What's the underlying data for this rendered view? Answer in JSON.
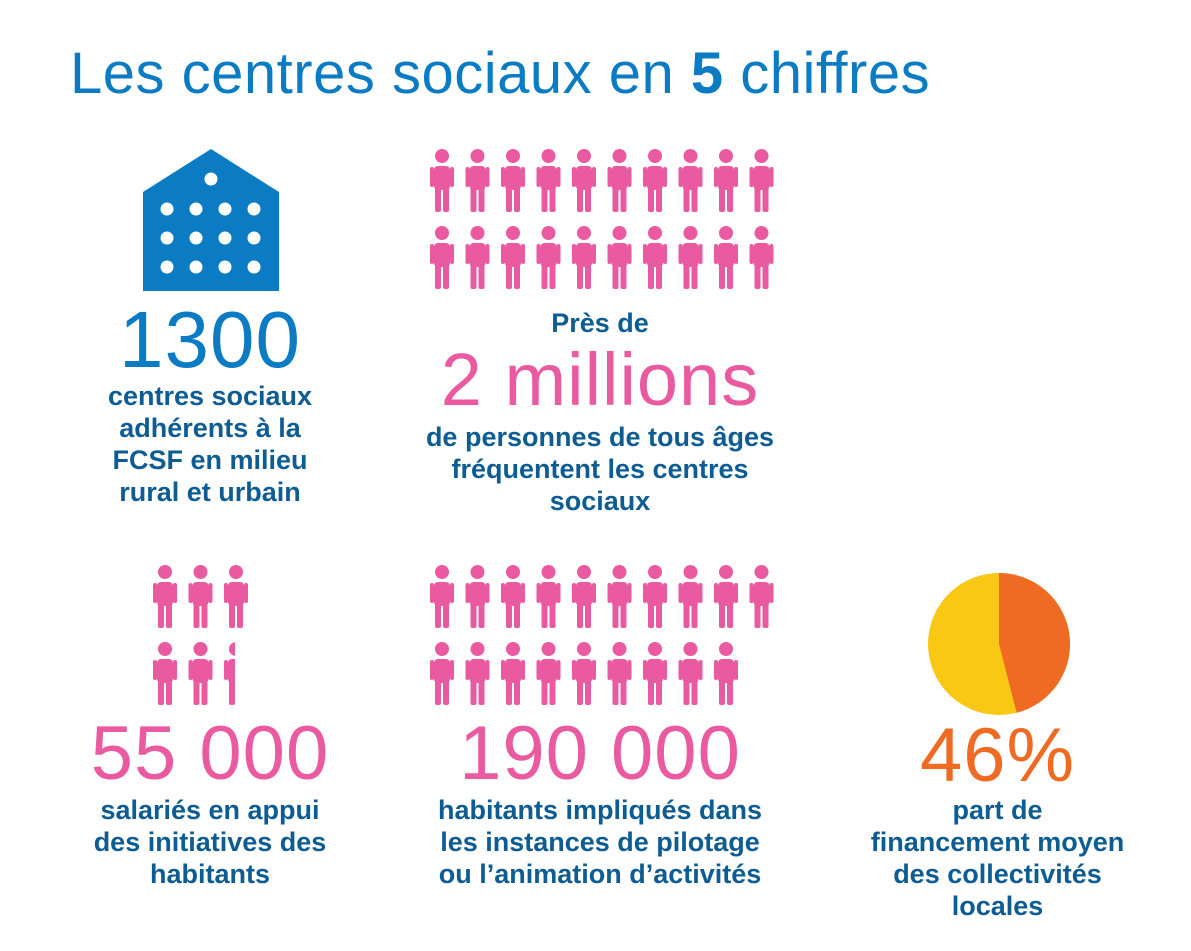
{
  "title": {
    "prefix": "Les centres sociaux en ",
    "number": "5",
    "suffix": " chiffres"
  },
  "colors": {
    "blue": "#0b7bc4",
    "dark_blue": "#0d5c93",
    "pink": "#ea5aa0",
    "orange": "#ef6a23",
    "yellow": "#f9c814"
  },
  "stats": {
    "centres": {
      "icon": "building-icon",
      "value": "1300",
      "desc": [
        "centres sociaux",
        "adhérents à la",
        "FCSF en milieu",
        "rural et urbain"
      ]
    },
    "personnes": {
      "icon": "people-icon",
      "pre": "Près de",
      "value": "2 millions",
      "desc": [
        "de personnes de tous âges",
        "fréquentent les centres",
        "sociaux"
      ]
    },
    "salaries": {
      "icon": "people-icon",
      "value": "55 000",
      "desc": [
        "salariés en appui",
        "des initiatives des",
        "habitants"
      ]
    },
    "habitants": {
      "icon": "people-icon",
      "value": "190 000",
      "desc": [
        "habitants impliqués dans",
        "les instances de pilotage",
        "ou l’animation d’activités"
      ]
    },
    "financement": {
      "icon": "pie-chart-icon",
      "value": "46%",
      "share": 46,
      "desc": [
        "part de",
        "financement moyen",
        "des collectivités",
        "locales"
      ]
    }
  }
}
